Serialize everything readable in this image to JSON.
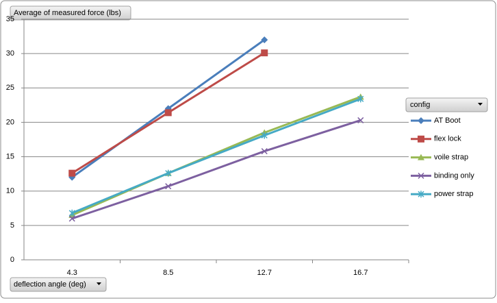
{
  "chart_data": {
    "type": "line",
    "y_label": "Average of measured force (lbs)",
    "x_label": "deflection angle (deg)",
    "legend_title": "config",
    "categories": [
      "4.3",
      "8.5",
      "12.7",
      "16.7"
    ],
    "series": [
      {
        "name": "AT Boot",
        "color": "#4a7ebb",
        "marker": "diamond",
        "values": [
          12,
          22,
          32,
          null
        ]
      },
      {
        "name": "flex lock",
        "color": "#be4b48",
        "marker": "square",
        "values": [
          12.6,
          21.4,
          30.1,
          null
        ]
      },
      {
        "name": "voile strap",
        "color": "#98b954",
        "marker": "triangle",
        "values": [
          6.5,
          12.6,
          18.5,
          23.7
        ]
      },
      {
        "name": "binding only",
        "color": "#7d60a0",
        "marker": "x",
        "values": [
          6,
          10.7,
          15.8,
          20.3
        ]
      },
      {
        "name": "power strap",
        "color": "#46aac5",
        "marker": "star",
        "values": [
          6.8,
          12.6,
          18.1,
          23.4
        ]
      }
    ],
    "ylim": [
      0,
      35
    ],
    "yticks": [
      0,
      5,
      10,
      15,
      20,
      25,
      30,
      35
    ],
    "grid": true,
    "legend": "right"
  }
}
